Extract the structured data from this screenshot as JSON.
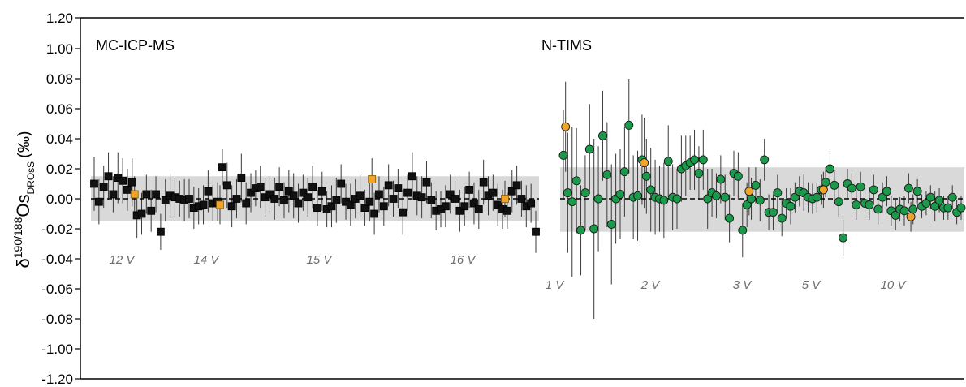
{
  "chart_data": {
    "type": "scatter",
    "ylabel": {
      "prefix": "δ",
      "superscript": "190/188",
      "main": "Os",
      "subscript": "DROsS",
      "unit": "(‰)"
    },
    "y_tick_labels": [
      "1.20",
      "1.00",
      "0.08",
      "0.06",
      "0.04",
      "0.02",
      "0.00",
      "-0.02",
      "-0.04",
      "-0.06",
      "-0.08",
      "-1.00",
      "-1.20"
    ],
    "y_tick_values_printed": [
      1.2,
      1.0,
      0.08,
      0.06,
      0.04,
      0.02,
      0.0,
      -0.02,
      -0.04,
      -0.06,
      -0.08,
      -1.0,
      -1.2
    ],
    "reference_line_y": 0.0,
    "panels": [
      {
        "label": "MC-ICP-MS",
        "marker": "square",
        "band": {
          "ymin": -0.015,
          "ymax": 0.015
        },
        "annotations": [
          "12 V",
          "14 V",
          "15 V",
          "16 V"
        ],
        "series": [
          {
            "color": "#111111",
            "y": [
              0.01,
              -0.002,
              0.008,
              0.015,
              0.003,
              0.014,
              0.012,
              0.006,
              0.011,
              -0.011,
              -0.01,
              0.003,
              -0.008,
              0.003,
              -0.022,
              -0.001,
              0.002,
              0.001,
              0.0,
              -0.001,
              0.0,
              -0.006,
              -0.005,
              -0.004,
              0.005,
              -0.003,
              -0.002,
              0.021,
              0.009,
              -0.005,
              0.0,
              0.014,
              -0.003,
              0.004,
              0.007,
              0.008,
              0.001,
              0.003,
              0.0,
              0.008,
              -0.001,
              0.005,
              0.002,
              -0.003,
              0.004,
              0.001,
              0.008,
              -0.006,
              0.005,
              -0.007,
              -0.005,
              -0.001,
              0.01,
              -0.002,
              -0.004,
              0.0,
              0.002,
              -0.006,
              -0.002,
              -0.01,
              0.003,
              -0.005,
              0.009,
              0.0,
              0.007,
              -0.009,
              0.004,
              0.015,
              0.002,
              0.001,
              0.011,
              -0.001,
              -0.008,
              -0.007,
              -0.005,
              0.003,
              0.0,
              -0.008,
              -0.005,
              0.006,
              -0.003,
              -0.007,
              0.011,
              0.002,
              0.004,
              -0.004,
              -0.007,
              -0.008,
              0.005,
              0.009,
              0.0,
              -0.005,
              -0.003,
              -0.022
            ],
            "err": [
              0.018,
              0.015,
              0.014,
              0.016,
              0.012,
              0.017,
              0.015,
              0.014,
              0.016,
              0.015,
              0.014,
              0.013,
              0.014,
              0.012,
              0.012,
              0.014,
              0.015,
              0.013,
              0.012,
              0.014,
              0.013,
              0.014,
              0.012,
              0.013,
              0.014,
              0.012,
              0.013,
              0.012,
              0.015,
              0.014,
              0.013,
              0.016,
              0.014,
              0.013,
              0.012,
              0.014,
              0.013,
              0.012,
              0.014,
              0.013,
              0.012,
              0.014,
              0.015,
              0.013,
              0.012,
              0.013,
              0.014,
              0.012,
              0.013,
              0.012,
              0.014,
              0.015,
              0.013,
              0.012,
              0.014,
              0.013,
              0.014,
              0.012,
              0.013,
              0.014,
              0.012,
              0.013,
              0.014,
              0.012,
              0.013,
              0.015,
              0.012,
              0.016,
              0.013,
              0.014,
              0.014,
              0.012,
              0.013,
              0.012,
              0.014,
              0.013,
              0.012,
              0.014,
              0.013,
              0.012,
              0.014,
              0.013,
              0.015,
              0.013,
              0.012,
              0.014,
              0.013,
              0.012,
              0.014,
              0.013,
              0.012,
              0.014,
              0.013,
              0.014
            ]
          },
          {
            "color": "#f0a52a",
            "y": [
              0.003,
              -0.004,
              0.013,
              0.0
            ],
            "err": [
              0.012,
              0.013,
              0.014,
              0.012
            ],
            "positions": [
              8,
              26,
              58,
              86
            ]
          }
        ]
      },
      {
        "label": "N-TIMS",
        "marker": "circle",
        "band": {
          "ymin": -0.022,
          "ymax": 0.021
        },
        "annotations": [
          "1 V",
          "2 V",
          "3 V",
          "5 V",
          "10 V"
        ],
        "series": [
          {
            "color": "#1a9a4a",
            "y": [
              0.029,
              0.004,
              -0.002,
              0.012,
              -0.021,
              0.004,
              0.033,
              -0.02,
              0.0,
              0.042,
              0.016,
              -0.017,
              0.0,
              0.003,
              0.018,
              0.049,
              0.001,
              0.002,
              0.026,
              0.015,
              0.006,
              0.001,
              0.0,
              -0.001,
              0.025,
              0.001,
              0.0,
              0.02,
              0.022,
              0.024,
              0.026,
              0.017,
              0.026,
              0.0,
              0.004,
              0.002,
              0.013,
              0.001,
              -0.013,
              0.017,
              0.015,
              -0.021,
              -0.004,
              0.0,
              0.009,
              -0.001,
              0.026,
              -0.009,
              -0.009,
              0.004,
              -0.013,
              -0.003,
              -0.005,
              0.001,
              0.005,
              0.004,
              0.001,
              0.0,
              0.001,
              0.006,
              0.011,
              0.02,
              0.009,
              -0.002,
              -0.026,
              0.01,
              0.007,
              -0.004,
              0.008,
              -0.003,
              -0.004,
              0.006,
              -0.007,
              0.001,
              0.005,
              -0.008,
              -0.011,
              -0.007,
              -0.008,
              0.007,
              -0.007,
              0.005,
              -0.005,
              -0.003,
              0.001,
              -0.005,
              -0.001,
              -0.006,
              -0.006,
              0.001,
              -0.009,
              -0.006
            ],
            "err": [
              0.03,
              0.04,
              0.05,
              0.035,
              0.03,
              0.025,
              0.03,
              0.06,
              0.035,
              0.03,
              0.035,
              0.04,
              0.03,
              0.03,
              0.03,
              0.032,
              0.028,
              0.03,
              0.03,
              0.025,
              0.028,
              0.025,
              0.022,
              0.025,
              0.024,
              0.022,
              0.02,
              0.022,
              0.02,
              0.018,
              0.02,
              0.018,
              0.02,
              0.02,
              0.016,
              0.015,
              0.016,
              0.015,
              0.016,
              0.015,
              0.016,
              0.018,
              0.015,
              0.014,
              0.012,
              0.014,
              0.014,
              0.012,
              0.012,
              0.012,
              0.012,
              0.01,
              0.012,
              0.01,
              0.01,
              0.012,
              0.01,
              0.01,
              0.01,
              0.01,
              0.01,
              0.012,
              0.01,
              0.01,
              0.012,
              0.01,
              0.01,
              0.01,
              0.01,
              0.01,
              0.01,
              0.01,
              0.01,
              0.01,
              0.01,
              0.01,
              0.01,
              0.008,
              0.01,
              0.01,
              0.01,
              0.008,
              0.008,
              0.008,
              0.008,
              0.01,
              0.008,
              0.008,
              0.008,
              0.008,
              0.008,
              0.008
            ]
          },
          {
            "color": "#f0a52a",
            "y": [
              0.048,
              0.024,
              0.005,
              0.006,
              -0.012
            ],
            "err": [
              0.03,
              0.03,
              0.016,
              0.012,
              0.01
            ],
            "positions": [
              0,
              18,
              42,
              59,
              79
            ]
          }
        ]
      }
    ]
  }
}
